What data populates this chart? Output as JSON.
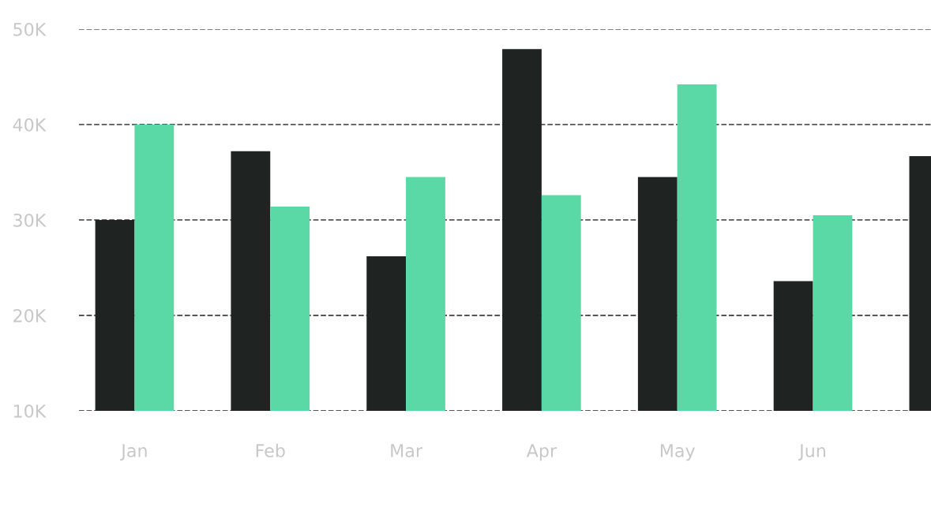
{
  "chart_data": {
    "type": "bar",
    "categories": [
      "Jan",
      "Feb",
      "Mar",
      "Apr",
      "May",
      "Jun",
      null
    ],
    "series": [
      {
        "color": "#1f2322",
        "values": [
          30000,
          37200,
          26200,
          47900,
          34500,
          23600,
          36700
        ]
      },
      {
        "color": "#5ad8a6",
        "values": [
          40000,
          31400,
          34500,
          32600,
          44200,
          30500,
          null
        ]
      }
    ],
    "ylim": [
      10000,
      50000
    ],
    "yticks": [
      {
        "value": 10000,
        "label": "10K"
      },
      {
        "value": 20000,
        "label": "20K"
      },
      {
        "value": 30000,
        "label": "30K"
      },
      {
        "value": 40000,
        "label": "40K"
      },
      {
        "value": 50000,
        "label": "50K"
      }
    ],
    "grid": "y",
    "line_style": "dashed",
    "legend": false
  }
}
